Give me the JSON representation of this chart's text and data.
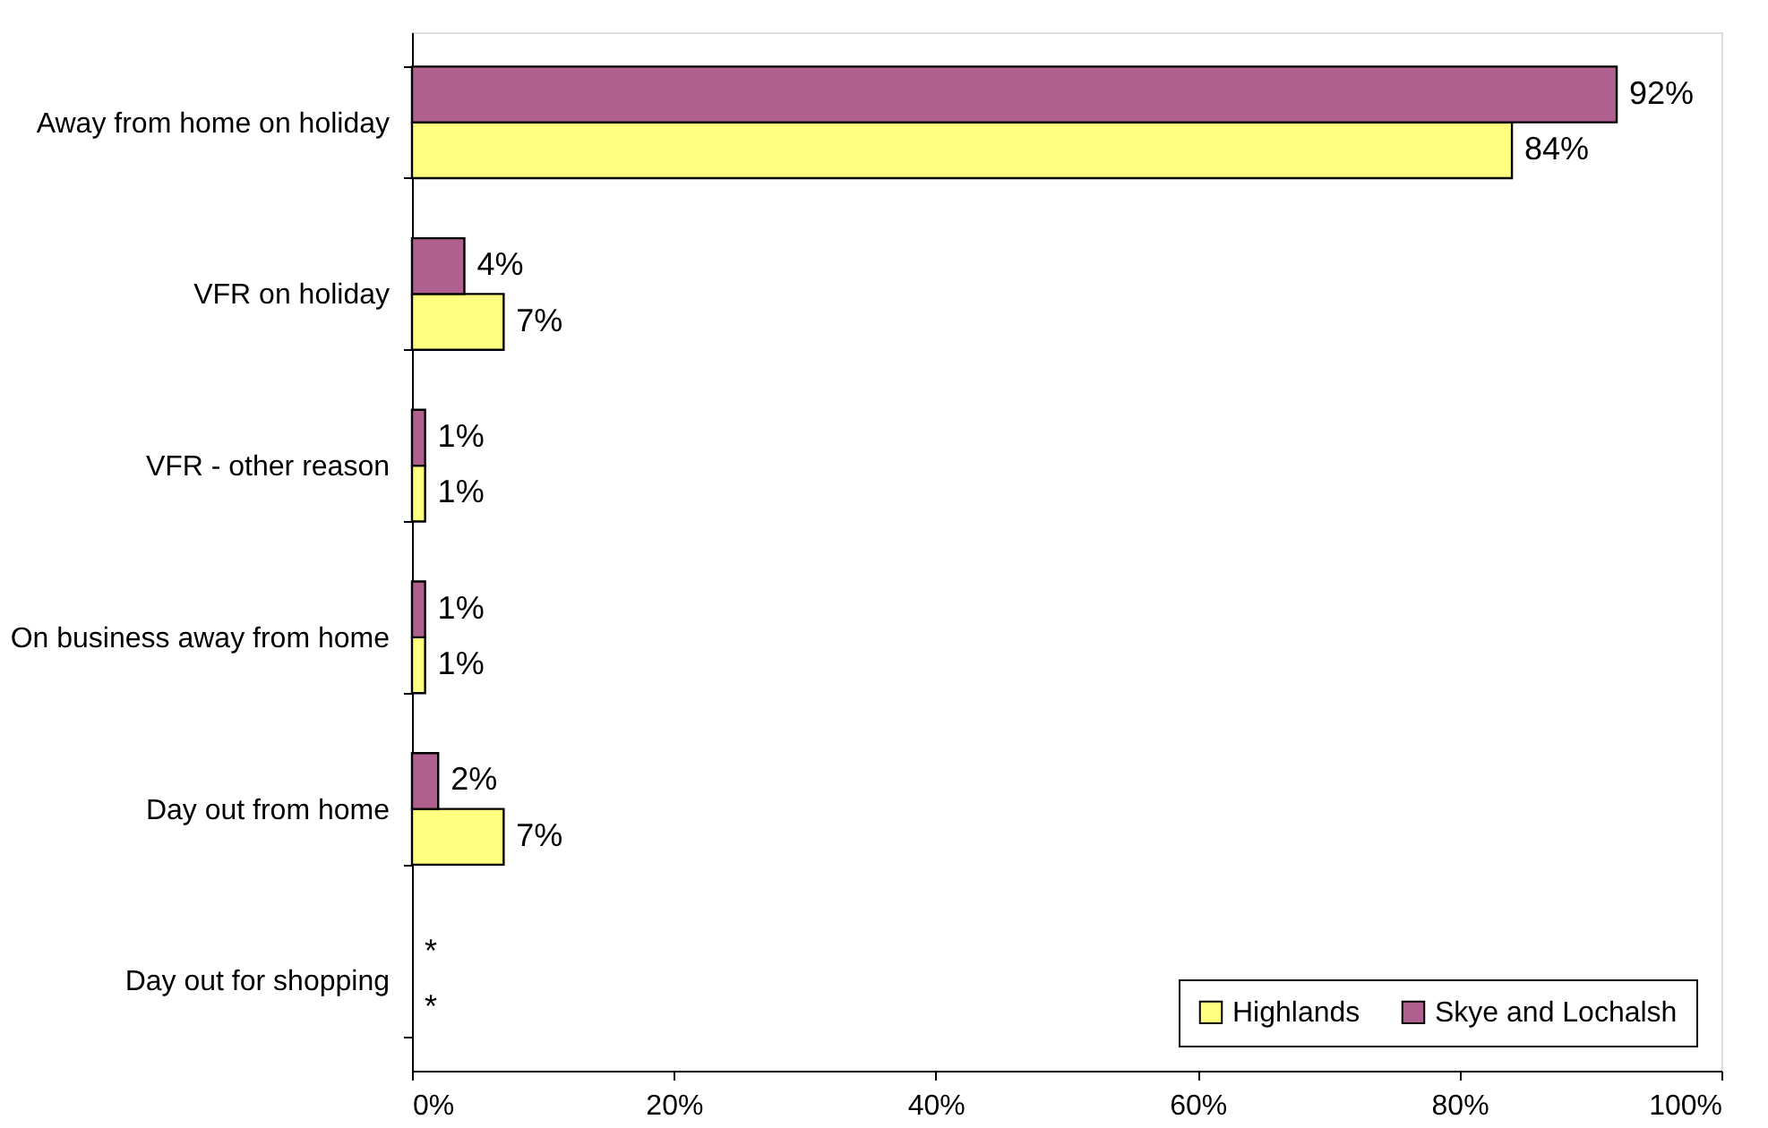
{
  "chart_data": {
    "type": "bar",
    "orientation": "horizontal",
    "categories": [
      "Away from home on holiday",
      "VFR on holiday",
      "VFR - other reason",
      "On business away from home",
      "Day out from home",
      "Day out for shopping"
    ],
    "series": [
      {
        "name": "Highlands",
        "color": "#ffff80",
        "values": [
          84,
          7,
          1,
          1,
          7,
          null
        ],
        "value_labels": [
          "84%",
          "7%",
          "1%",
          "1%",
          "7%",
          "*"
        ]
      },
      {
        "name": "Skye and Lochalsh",
        "color": "#b0608f",
        "values": [
          92,
          4,
          1,
          1,
          2,
          null
        ],
        "value_labels": [
          "92%",
          "4%",
          "1%",
          "1%",
          "2%",
          "*"
        ]
      }
    ],
    "xlim": [
      0,
      100
    ],
    "xticks": [
      {
        "value": 0,
        "label": "0%"
      },
      {
        "value": 20,
        "label": "20%"
      },
      {
        "value": 40,
        "label": "40%"
      },
      {
        "value": 60,
        "label": "60%"
      },
      {
        "value": 80,
        "label": "80%"
      },
      {
        "value": 100,
        "label": "100%"
      }
    ],
    "grid": false,
    "legend": "bottom right"
  }
}
